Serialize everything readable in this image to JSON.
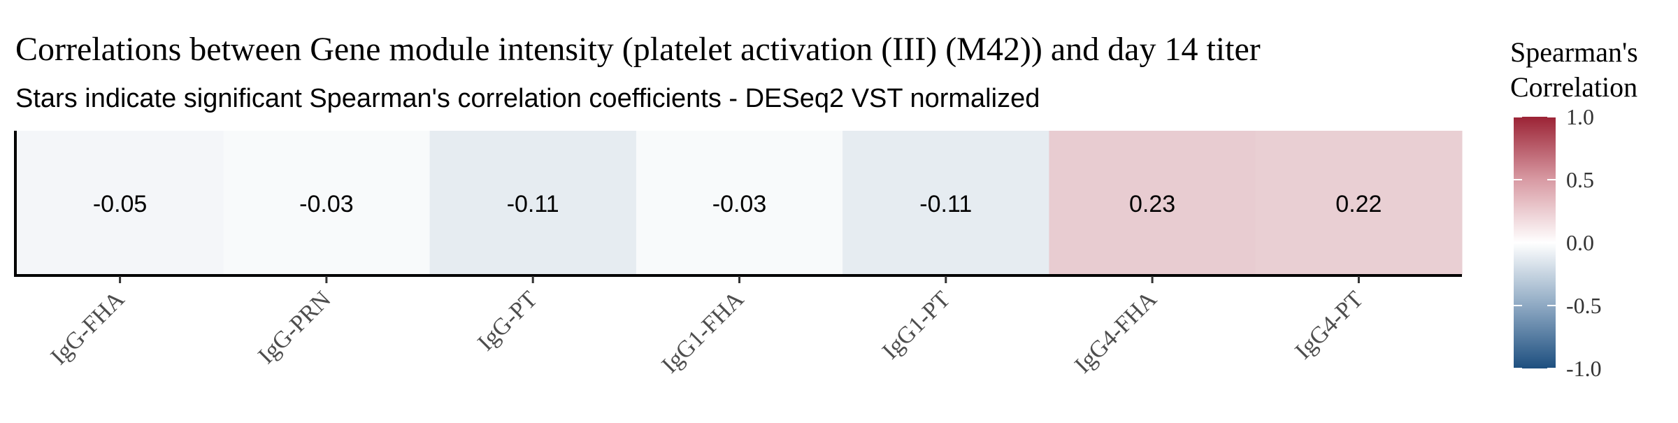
{
  "chart_data": {
    "type": "heatmap",
    "title": "Correlations between Gene module intensity (platelet activation (III) (M42)) and day 14 titer",
    "subtitle": "Stars indicate significant Spearman's correlation coefficients - DESeq2 VST normalized",
    "categories": [
      "IgG-FHA",
      "IgG-PRN",
      "IgG-PT",
      "IgG1-FHA",
      "IgG1-PT",
      "IgG4-FHA",
      "IgG4-PT"
    ],
    "values": [
      -0.05,
      -0.03,
      -0.11,
      -0.03,
      -0.11,
      0.23,
      0.22
    ],
    "value_labels": [
      "-0.05",
      "-0.03",
      "-0.11",
      "-0.03",
      "-0.11",
      "0.23",
      "0.22"
    ],
    "legend": {
      "title_line1": "Spearman's",
      "title_line2": "Correlation",
      "ticks": [
        1.0,
        0.5,
        0.0,
        -0.5,
        -1.0
      ],
      "tick_labels": [
        "1.0",
        "0.5",
        "0.0",
        "-0.5",
        "-1.0"
      ],
      "range": [
        -1.0,
        1.0
      ],
      "position": "right"
    },
    "colors": {
      "low": "#1d4f7f",
      "mid": "#ffffff",
      "high": "#9b2335"
    },
    "grid": false
  }
}
